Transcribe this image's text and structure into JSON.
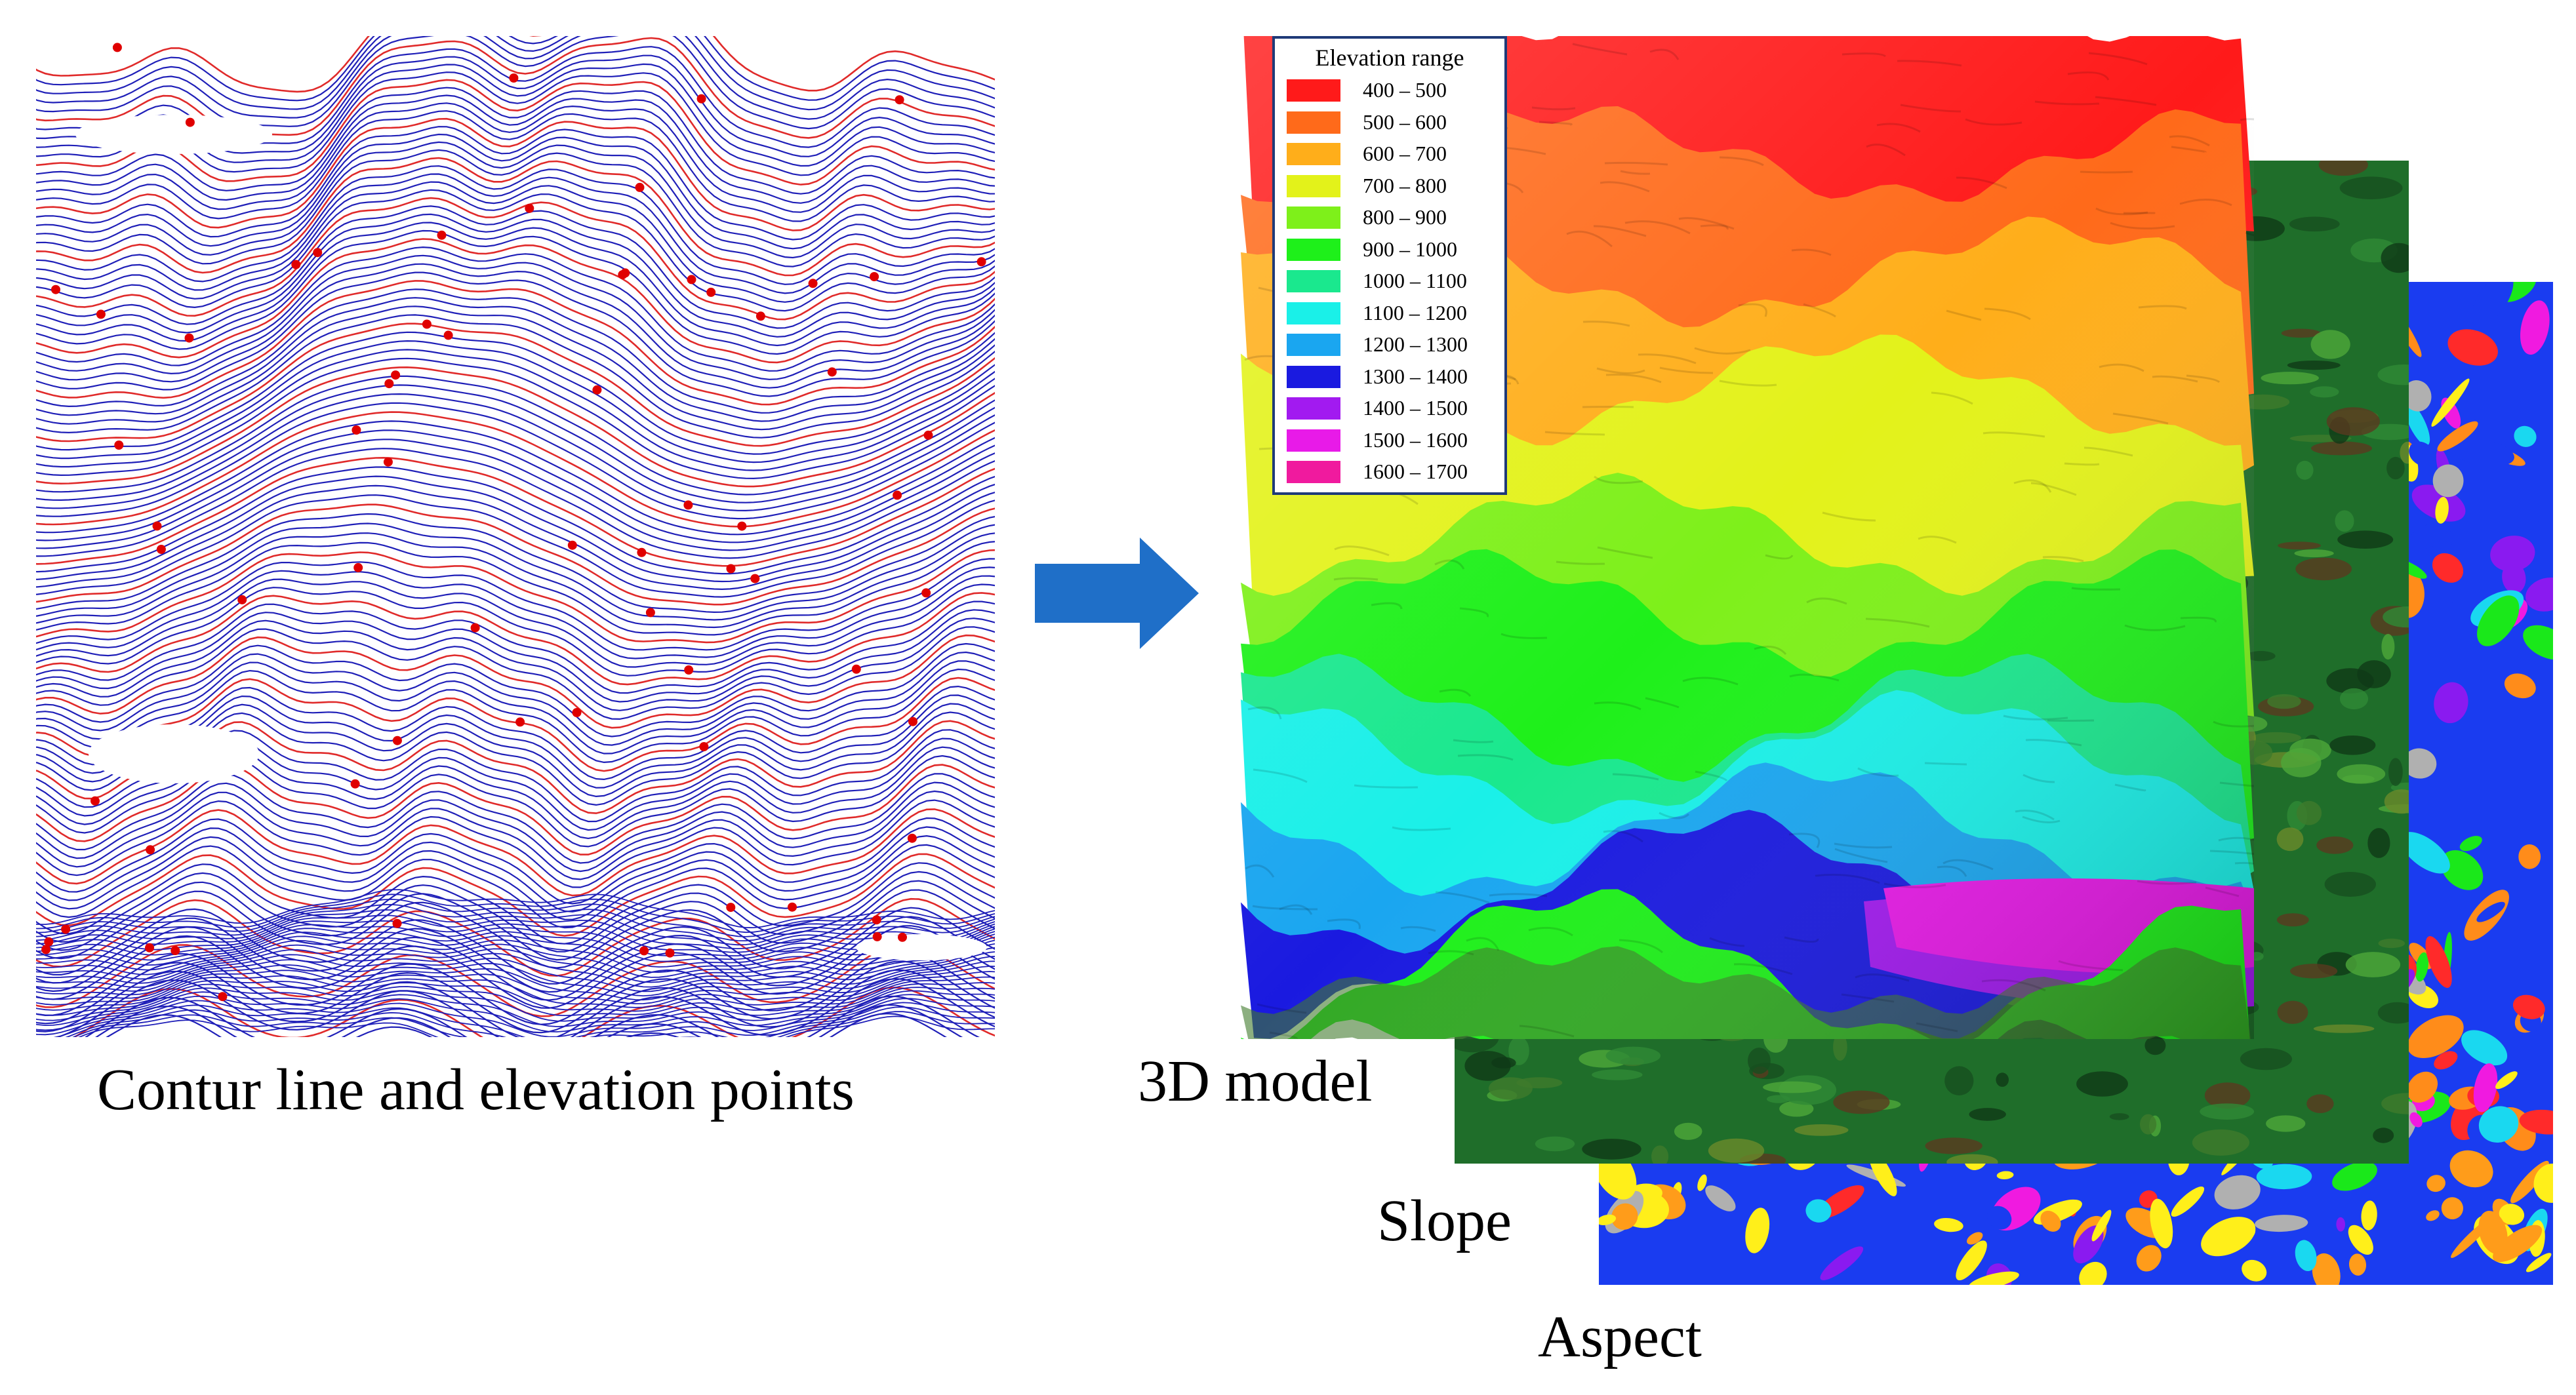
{
  "captions": {
    "contour": "Contur line and elevation points",
    "model": "3D model",
    "slope": "Slope",
    "aspect": "Aspect"
  },
  "legend": {
    "title": "Elevation range",
    "items": [
      {
        "label": "400 – 500",
        "color": "#ff1a1a"
      },
      {
        "label": "500 – 600",
        "color": "#ff6a1a"
      },
      {
        "label": "600 – 700",
        "color": "#ffae1a"
      },
      {
        "label": "700 – 800",
        "color": "#e3f21a"
      },
      {
        "label": "800 – 900",
        "color": "#7ef01a"
      },
      {
        "label": "900 – 1000",
        "color": "#1ef01a"
      },
      {
        "label": "1000 – 1100",
        "color": "#1ae88e"
      },
      {
        "label": "1100 – 1200",
        "color": "#1af0e8"
      },
      {
        "label": "1200 – 1300",
        "color": "#1aa6f0"
      },
      {
        "label": "1300 – 1400",
        "color": "#1a1ae0"
      },
      {
        "label": "1400 – 1500",
        "color": "#a21af0"
      },
      {
        "label": "1500 – 1600",
        "color": "#e81ae8"
      },
      {
        "label": "1600 – 1700",
        "color": "#f01a9e"
      }
    ]
  },
  "colors": {
    "contour_line": "#1f1fb8",
    "index_contour": "#e02a2a",
    "elevation_point": "#e00000",
    "arrow": "#1f6fc8",
    "slope_base": "#1f6e2a",
    "aspect_base": "#1a3cf0"
  }
}
